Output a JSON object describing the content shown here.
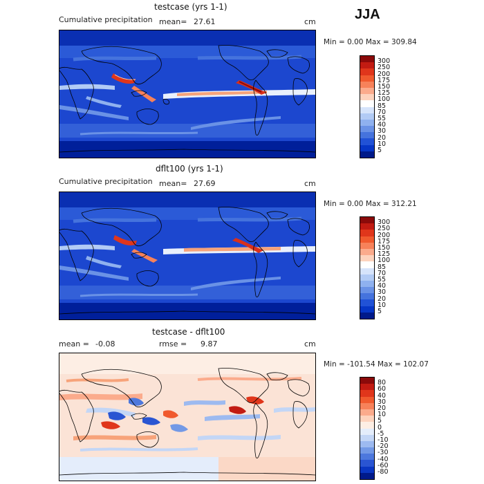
{
  "season": "JJA",
  "panels": [
    {
      "title": "testcase (yrs 1-1)",
      "subtitle": "Cumulative precipitation",
      "mean_label": "mean=",
      "mean_value": "27.61",
      "units": "cm",
      "minmax": "Min =    0.00 Max = 309.84",
      "colorbar": {
        "labels": [
          "300",
          "250",
          "200",
          "175",
          "150",
          "125",
          "100",
          "85",
          "70",
          "55",
          "40",
          "30",
          "20",
          "10",
          "5"
        ],
        "colors": [
          "#8b0a0a",
          "#c21b12",
          "#e0361b",
          "#f05a2e",
          "#f7825a",
          "#fbab8c",
          "#fdd3bd",
          "#ffffff",
          "#d6e4fb",
          "#b2cbf5",
          "#8fb1ef",
          "#6a92e6",
          "#4573dd",
          "#2152d6",
          "#0636c6",
          "#001a8a"
        ]
      }
    },
    {
      "title": "dflt100 (yrs 1-1)",
      "subtitle": "Cumulative precipitation",
      "mean_label": "mean=",
      "mean_value": "27.69",
      "units": "cm",
      "minmax": "Min =    0.00 Max = 312.21",
      "colorbar": {
        "labels": [
          "300",
          "250",
          "200",
          "175",
          "150",
          "125",
          "100",
          "85",
          "70",
          "55",
          "40",
          "30",
          "20",
          "10",
          "5"
        ],
        "colors": [
          "#8b0a0a",
          "#c21b12",
          "#e0361b",
          "#f05a2e",
          "#f7825a",
          "#fbab8c",
          "#fdd3bd",
          "#ffffff",
          "#d6e4fb",
          "#b2cbf5",
          "#8fb1ef",
          "#6a92e6",
          "#4573dd",
          "#2152d6",
          "#0636c6",
          "#001a8a"
        ]
      }
    },
    {
      "title": "testcase - dflt100",
      "mean_label": "mean =",
      "mean_value": "-0.08",
      "rmse_label": "rmse =",
      "rmse_value": "9.87",
      "units": "cm",
      "minmax": "Min = -101.54 Max = 102.07",
      "colorbar": {
        "labels": [
          "80",
          "60",
          "40",
          "30",
          "20",
          "10",
          "5",
          "0",
          "-5",
          "-10",
          "-20",
          "-30",
          "-40",
          "-60",
          "-80"
        ],
        "colors": [
          "#8b0a0a",
          "#c21b12",
          "#e0361b",
          "#f05a2e",
          "#f7825a",
          "#fbab8c",
          "#fdd3bd",
          "#fdeee4",
          "#e4edfb",
          "#c3d6f6",
          "#9dbaf0",
          "#7399e6",
          "#4d78dd",
          "#2a55d2",
          "#0a36c2",
          "#001a8a"
        ]
      }
    }
  ],
  "chart_data": [
    {
      "type": "heatmap",
      "title": "testcase (yrs 1-1)",
      "subtitle": "Cumulative precipitation",
      "mean": 27.61,
      "units": "cm",
      "min": 0.0,
      "max": 309.84,
      "levels": [
        5,
        10,
        20,
        30,
        40,
        55,
        70,
        85,
        100,
        125,
        150,
        175,
        200,
        250,
        300
      ]
    },
    {
      "type": "heatmap",
      "title": "dflt100 (yrs 1-1)",
      "subtitle": "Cumulative precipitation",
      "mean": 27.69,
      "units": "cm",
      "min": 0.0,
      "max": 312.21,
      "levels": [
        5,
        10,
        20,
        30,
        40,
        55,
        70,
        85,
        100,
        125,
        150,
        175,
        200,
        250,
        300
      ]
    },
    {
      "type": "heatmap",
      "title": "testcase - dflt100",
      "mean": -0.08,
      "rmse": 9.87,
      "units": "cm",
      "min": -101.54,
      "max": 102.07,
      "levels": [
        -80,
        -60,
        -40,
        -30,
        -20,
        -10,
        -5,
        0,
        5,
        10,
        20,
        30,
        40,
        60,
        80
      ]
    }
  ]
}
